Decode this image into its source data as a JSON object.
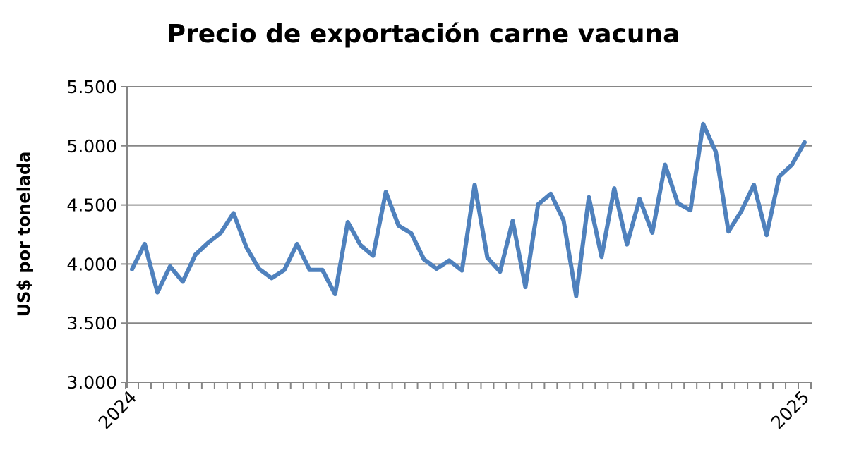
{
  "chart_data": {
    "type": "line",
    "title": "Precio de exportación carne vacuna",
    "xlabel": "",
    "ylabel": "US$ por tonelada",
    "ylim": [
      3000,
      5500
    ],
    "yticks": [
      3000,
      3500,
      4000,
      4500,
      5000,
      5500
    ],
    "ytick_labels": [
      "3.000",
      "3.500",
      "4.000",
      "4.500",
      "5.000",
      "5.500"
    ],
    "x_labels": [
      "2024",
      "2025"
    ],
    "grid": true,
    "legend": "none",
    "series": [
      {
        "color": "#4f81bd",
        "values": [
          3955,
          4170,
          3760,
          3980,
          3850,
          4080,
          4180,
          4265,
          4430,
          4145,
          3960,
          3880,
          3950,
          4170,
          3950,
          3950,
          3745,
          4355,
          4160,
          4070,
          4610,
          4325,
          4260,
          4040,
          3960,
          4030,
          3945,
          4670,
          4055,
          3935,
          4365,
          3805,
          4505,
          4595,
          4370,
          3730,
          4565,
          4060,
          4640,
          4165,
          4550,
          4265,
          4840,
          4515,
          4455,
          5185,
          4950,
          4275,
          4445,
          4670,
          4245,
          4740,
          4840,
          5030
        ]
      }
    ]
  }
}
